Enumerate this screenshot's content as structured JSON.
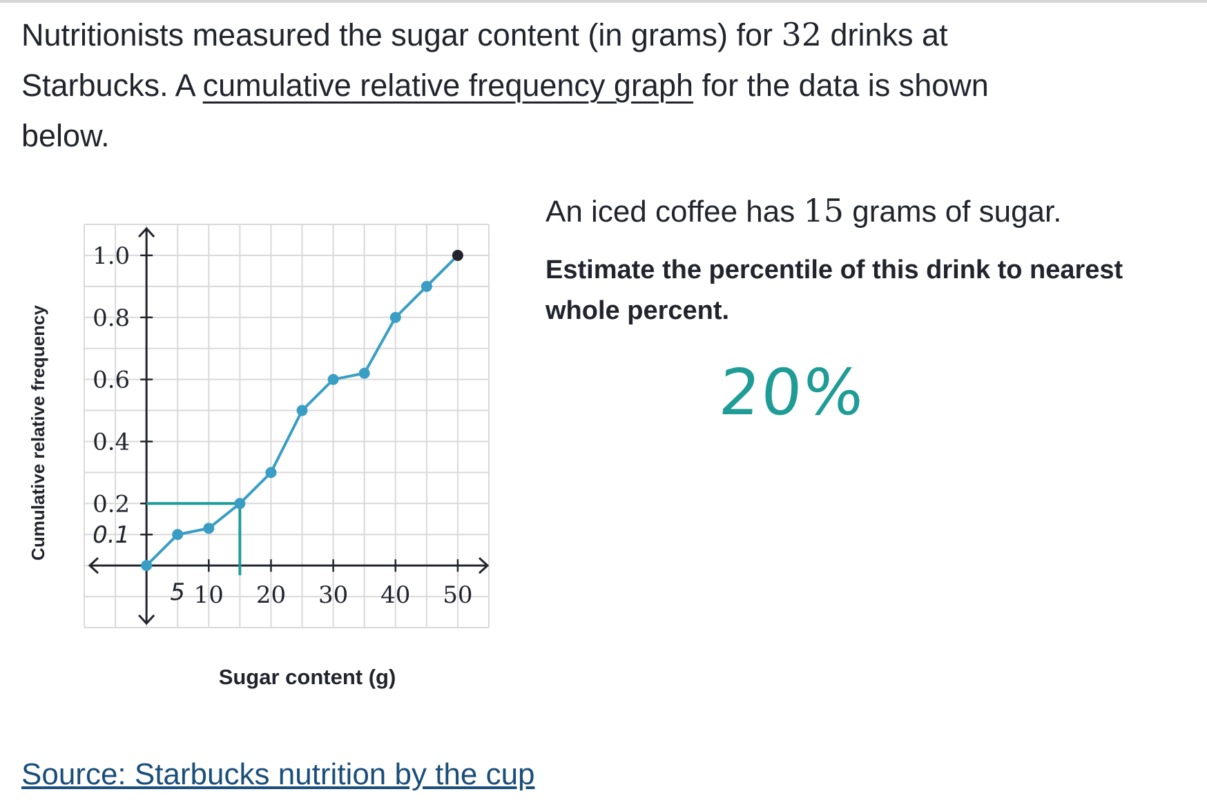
{
  "intro": {
    "part1": "Nutritionists measured the sugar content (in grams) for ",
    "count": "32",
    "part2": " drinks at Starbucks. A ",
    "underlined": "cumulative relative frequency graph",
    "part3": " for the data is shown below."
  },
  "question": {
    "part1": "An iced coffee has ",
    "value": "15",
    "part2": " grams of sugar."
  },
  "instruction": "Estimate the percentile of this drink to nearest whole percent.",
  "handwritten_answer": "20%",
  "source_link": "Source: Starbucks nutrition by the cup",
  "colors": {
    "series": "#3a9ec4",
    "annotation": "#1f9c96",
    "grid": "#d9d9d9",
    "axis": "#21242c"
  },
  "chart_data": {
    "type": "line",
    "xlabel": "Sugar content (g)",
    "ylabel": "Cumulative relative frequency",
    "xlim": [
      -10,
      55
    ],
    "ylim": [
      -0.2,
      1.1
    ],
    "x_ticks": [
      10,
      20,
      30,
      40,
      50
    ],
    "y_ticks": [
      0.2,
      0.4,
      0.6,
      0.8,
      1.0
    ],
    "y_tick_labels": [
      "0.2",
      "0.4",
      "0.6",
      "0.8",
      "1.0"
    ],
    "grid": true,
    "series": [
      {
        "x": [
          0,
          5,
          10,
          15,
          20,
          25,
          30,
          35,
          40,
          45,
          50
        ],
        "y": [
          0.0,
          0.1,
          0.12,
          0.2,
          0.3,
          0.5,
          0.6,
          0.62,
          0.8,
          0.9,
          1.0
        ]
      }
    ],
    "annotations": {
      "x_mark_label": "5",
      "x_mark_value": 5,
      "y_mark_label": "0.1",
      "y_mark_value": 0.1,
      "guide_x": 15,
      "guide_y": 0.2
    }
  }
}
